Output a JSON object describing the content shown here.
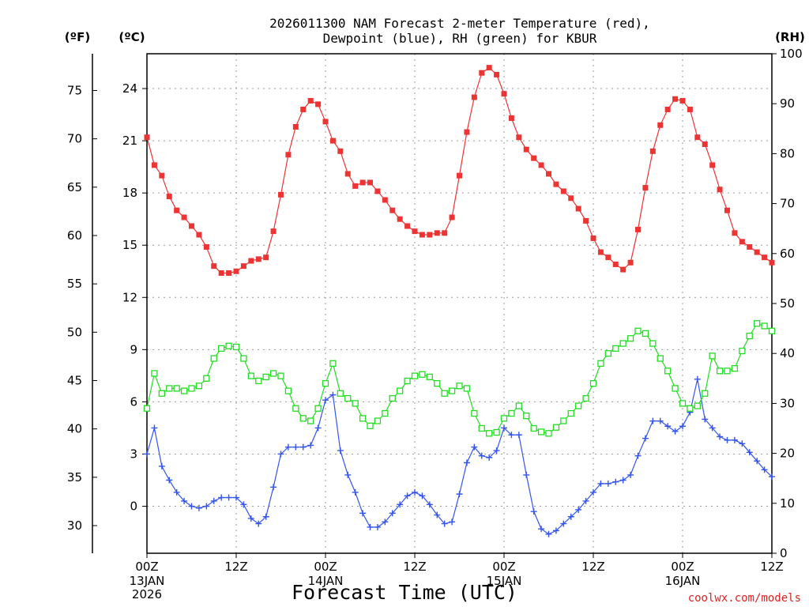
{
  "chart_data": {
    "type": "line",
    "title": [
      "2026011300 NAM Forecast 2-meter Temperature (red),",
      "Dewpoint (blue), RH (green) for KBUR"
    ],
    "xlabel": "Forecast Time (UTC)",
    "credit": "coolwx.com/models",
    "units": {
      "fahrenheit": "(ºF)",
      "celsius": "(ºC)",
      "rh": "(RH)"
    },
    "x_hours_range": [
      0,
      84
    ],
    "x_ticks": [
      {
        "hour": 0,
        "label": "00Z",
        "sub": [
          "13JAN",
          "2026"
        ]
      },
      {
        "hour": 12,
        "label": "12Z",
        "sub": []
      },
      {
        "hour": 24,
        "label": "00Z",
        "sub": [
          "14JAN"
        ]
      },
      {
        "hour": 36,
        "label": "12Z",
        "sub": []
      },
      {
        "hour": 48,
        "label": "00Z",
        "sub": [
          "15JAN"
        ]
      },
      {
        "hour": 60,
        "label": "12Z",
        "sub": []
      },
      {
        "hour": 72,
        "label": "00Z",
        "sub": [
          "16JAN"
        ]
      },
      {
        "hour": 84,
        "label": "12Z",
        "sub": []
      }
    ],
    "celsius_axis": {
      "min": -2.7,
      "max": 26.0,
      "ticks": [
        "0",
        "3",
        "6",
        "9",
        "12",
        "15",
        "18",
        "21",
        "24"
      ]
    },
    "fahrenheit_axis": {
      "ticks": [
        "30",
        "35",
        "40",
        "45",
        "50",
        "55",
        "60",
        "65",
        "70",
        "75"
      ]
    },
    "rh_axis": {
      "min": 0,
      "max": 100,
      "ticks": [
        "0",
        "10",
        "20",
        "30",
        "40",
        "50",
        "60",
        "70",
        "80",
        "90",
        "100"
      ]
    },
    "colors": {
      "temperature": "#ee3333",
      "dewpoint": "#3355ee",
      "rh": "#22dd22",
      "grid": "#9a9a9a"
    },
    "hours": [
      0,
      1,
      2,
      3,
      4,
      5,
      6,
      7,
      8,
      9,
      10,
      11,
      12,
      13,
      14,
      15,
      16,
      17,
      18,
      19,
      20,
      21,
      22,
      23,
      24,
      25,
      26,
      27,
      28,
      29,
      30,
      31,
      32,
      33,
      34,
      35,
      36,
      37,
      38,
      39,
      40,
      41,
      42,
      43,
      44,
      45,
      46,
      47,
      48,
      49,
      50,
      51,
      52,
      53,
      54,
      55,
      56,
      57,
      58,
      59,
      60,
      61,
      62,
      63,
      64,
      65,
      66,
      67,
      68,
      69,
      70,
      71,
      72,
      73,
      74,
      75,
      76,
      77,
      78,
      79,
      80,
      81,
      82,
      83,
      84
    ],
    "series": [
      {
        "name": "2-meter Temperature (°C)",
        "axis": "celsius",
        "marker": "filled-square",
        "values": [
          21.2,
          19.6,
          19.0,
          17.8,
          17.0,
          16.6,
          16.1,
          15.6,
          14.9,
          13.8,
          13.4,
          13.4,
          13.5,
          13.8,
          14.1,
          14.2,
          14.3,
          15.8,
          17.9,
          20.2,
          21.8,
          22.8,
          23.3,
          23.1,
          22.1,
          21.0,
          20.4,
          19.1,
          18.4,
          18.6,
          18.6,
          18.1,
          17.6,
          17.0,
          16.5,
          16.1,
          15.8,
          15.6,
          15.6,
          15.7,
          15.7,
          16.6,
          19.0,
          21.5,
          23.5,
          24.9,
          25.2,
          24.8,
          23.7,
          22.3,
          21.2,
          20.5,
          20.0,
          19.6,
          19.1,
          18.5,
          18.1,
          17.7,
          17.1,
          16.4,
          15.4,
          14.6,
          14.3,
          13.9,
          13.6,
          14.0,
          15.9,
          18.3,
          20.4,
          21.9,
          22.8,
          23.4,
          23.3,
          22.8,
          21.2,
          20.8,
          19.6,
          18.2,
          17.0,
          15.7,
          15.2,
          14.9,
          14.6,
          14.3,
          14.0
        ]
      },
      {
        "name": "Dewpoint (°C)",
        "axis": "celsius",
        "marker": "plus",
        "values": [
          3.0,
          4.5,
          2.3,
          1.5,
          0.8,
          0.3,
          0.0,
          -0.1,
          0.0,
          0.3,
          0.5,
          0.5,
          0.5,
          0.1,
          -0.7,
          -1.0,
          -0.6,
          1.1,
          3.0,
          3.4,
          3.4,
          3.4,
          3.5,
          4.5,
          6.1,
          6.4,
          3.2,
          1.8,
          0.8,
          -0.4,
          -1.2,
          -1.2,
          -0.9,
          -0.4,
          0.1,
          0.6,
          0.8,
          0.6,
          0.1,
          -0.5,
          -1.0,
          -0.9,
          0.7,
          2.5,
          3.4,
          2.9,
          2.8,
          3.2,
          4.5,
          4.1,
          4.1,
          1.8,
          -0.3,
          -1.3,
          -1.6,
          -1.4,
          -1.0,
          -0.6,
          -0.2,
          0.3,
          0.8,
          1.3,
          1.3,
          1.4,
          1.5,
          1.8,
          2.9,
          3.9,
          4.9,
          4.9,
          4.6,
          4.3,
          4.6,
          5.4,
          7.3,
          5.0,
          4.5,
          4.0,
          3.8,
          3.8,
          3.6,
          3.1,
          2.6,
          2.1,
          1.7
        ]
      },
      {
        "name": "Relative Humidity (%)",
        "axis": "rh",
        "marker": "open-square",
        "values": [
          29,
          36,
          32,
          33,
          33,
          32.5,
          33,
          33.5,
          35,
          39,
          41,
          41.5,
          41.3,
          39,
          35.5,
          34.5,
          35.3,
          36,
          35.5,
          32.5,
          29,
          27,
          26.5,
          29,
          34,
          38,
          32,
          31,
          30,
          27,
          25.5,
          26.5,
          28,
          31,
          32.5,
          34.5,
          35.5,
          35.8,
          35.3,
          34,
          32,
          32.5,
          33.5,
          33,
          28,
          25,
          24,
          24.2,
          27,
          28,
          29.5,
          27.5,
          25,
          24.3,
          24,
          25.2,
          26.5,
          28,
          29.5,
          31,
          34,
          38,
          40,
          41,
          42,
          43,
          44.5,
          44,
          42,
          39,
          36.5,
          33,
          30,
          29,
          29.5,
          32,
          39.5,
          36.5,
          36.5,
          37,
          40.5,
          43.5,
          46,
          45.5,
          44.5
        ]
      }
    ]
  }
}
